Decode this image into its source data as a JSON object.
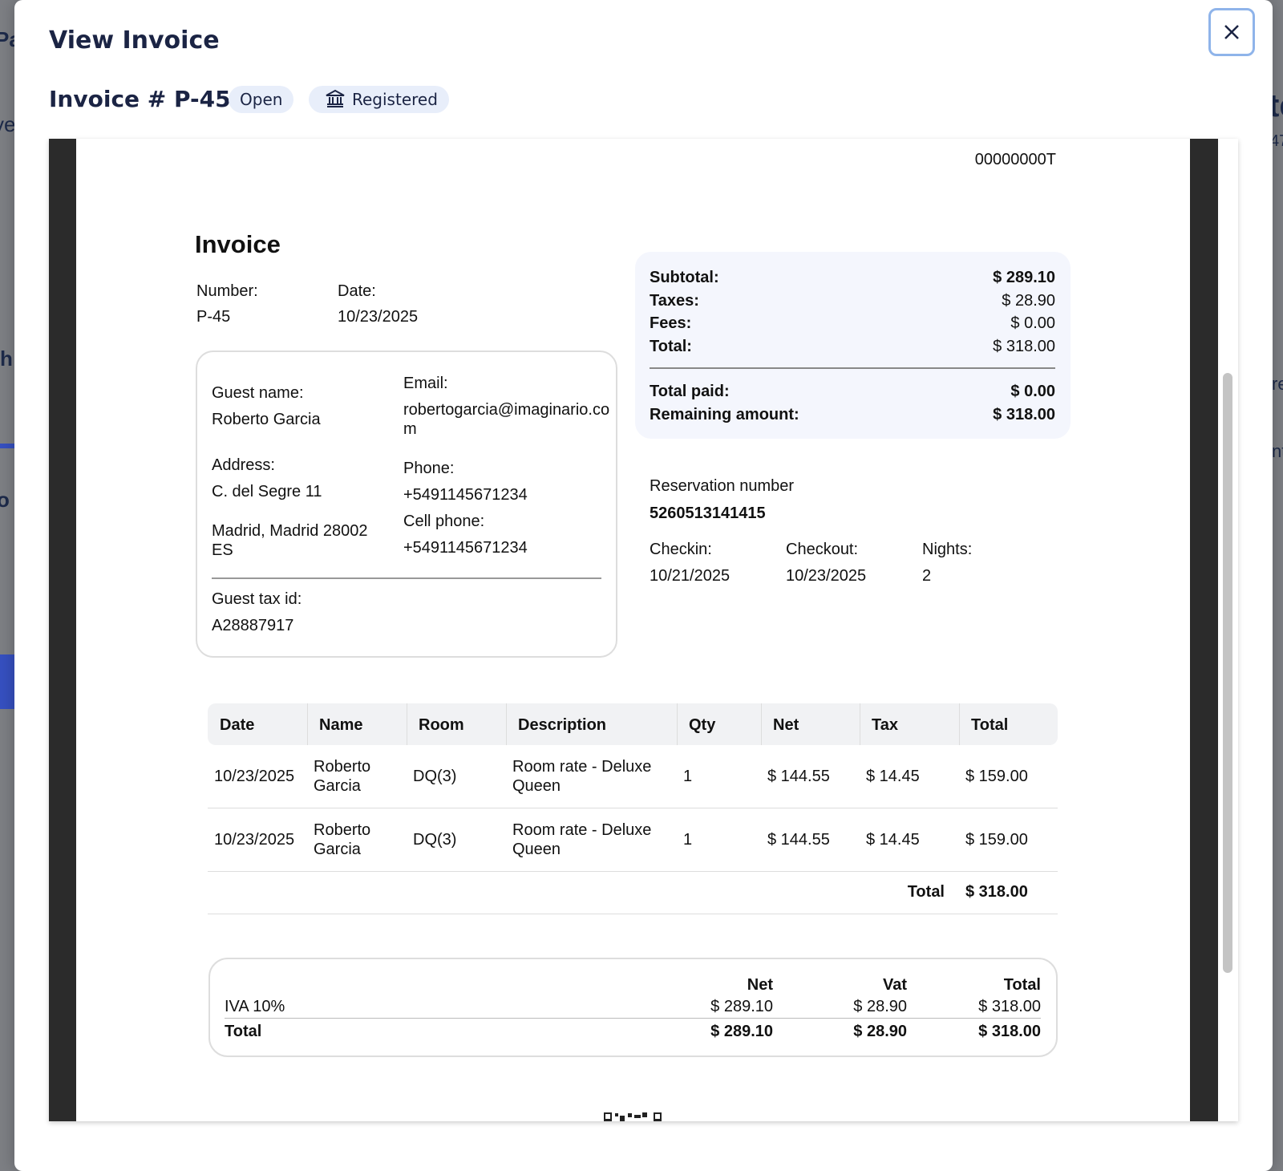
{
  "background": {
    "left_fragments": [
      "Pa",
      "ve",
      "h",
      "o"
    ],
    "right_fragments": [
      "te",
      "47",
      "re",
      "nt"
    ]
  },
  "modal": {
    "title": "View Invoice"
  },
  "header": {
    "invoice_label": "Invoice # P-45",
    "status": "Open",
    "registration": "Registered"
  },
  "document": {
    "tax_code": "00000000T",
    "title": "Invoice",
    "number_label": "Number:",
    "number": "P-45",
    "date_label": "Date:",
    "date": "10/23/2025",
    "guest": {
      "name_label": "Guest name:",
      "name": "Roberto Garcia",
      "email_label": "Email:",
      "email": "robertogarcia@imaginario.com",
      "address_label": "Address:",
      "address_line1": "C. del Segre 11",
      "address_line2": "Madrid, Madrid 28002 ES",
      "phone_label": "Phone:",
      "phone": "+5491145671234",
      "cell_label": "Cell phone:",
      "cell": "+5491145671234",
      "tax_id_label": "Guest tax id:",
      "tax_id": "A28887917"
    },
    "summary": {
      "rows": [
        [
          "Subtotal:",
          "$ 289.10"
        ],
        [
          "Taxes:",
          "$ 28.90"
        ],
        [
          "Fees:",
          "$ 0.00"
        ],
        [
          "Total:",
          "$ 318.00"
        ]
      ],
      "paid_rows": [
        [
          "Total paid:",
          "$ 0.00"
        ],
        [
          "Remaining amount:",
          "$ 318.00"
        ]
      ]
    },
    "reservation": {
      "label": "Reservation number",
      "number": "5260513141415",
      "checkin_label": "Checkin:",
      "checkin": "10/21/2025",
      "checkout_label": "Checkout:",
      "checkout": "10/23/2025",
      "nights_label": "Nights:",
      "nights": "2"
    },
    "table": {
      "headers": [
        "Date",
        "Name",
        "Room",
        "Description",
        "Qty",
        "Net",
        "Tax",
        "Total"
      ],
      "rows": [
        [
          "10/23/2025",
          "Roberto Garcia",
          "DQ(3)",
          "Room rate - Deluxe Queen",
          "1",
          "$ 144.55",
          "$ 14.45",
          "$ 159.00"
        ],
        [
          "10/23/2025",
          "Roberto Garcia",
          "DQ(3)",
          "Room rate - Deluxe Queen",
          "1",
          "$ 144.55",
          "$ 14.45",
          "$ 159.00"
        ]
      ],
      "total_label": "Total",
      "total_value": "$ 318.00"
    },
    "tax_summary": {
      "headers": [
        "Net",
        "Vat",
        "Total"
      ],
      "rows": [
        [
          "IVA 10%",
          "$ 289.10",
          "$ 28.90",
          "$ 318.00"
        ],
        [
          "Total",
          "$ 289.10",
          "$ 28.90",
          "$ 318.00"
        ]
      ]
    }
  }
}
